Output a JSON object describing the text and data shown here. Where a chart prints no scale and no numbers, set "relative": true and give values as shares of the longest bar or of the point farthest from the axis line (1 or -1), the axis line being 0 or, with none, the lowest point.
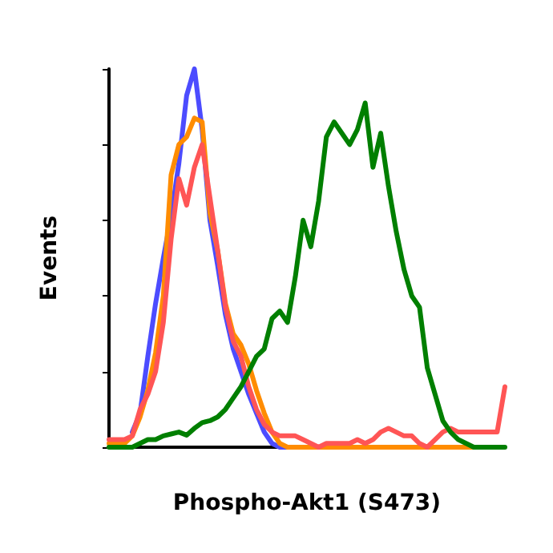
{
  "chart_data": {
    "type": "line",
    "xlabel": "Phospho-Akt1 (S473)",
    "ylabel": "Events",
    "relative": true,
    "grid": false,
    "line_style": "solid",
    "categories": [
      null,
      null,
      null,
      null,
      null,
      null,
      null,
      null,
      null,
      null,
      null,
      null,
      null,
      null,
      null,
      null,
      null,
      null,
      null,
      null,
      null,
      null,
      null,
      null,
      null,
      null,
      null,
      null,
      null,
      null,
      null,
      null,
      null,
      null,
      null,
      null,
      null,
      null,
      null,
      null,
      null,
      null,
      null,
      null,
      null,
      null,
      null,
      null,
      null,
      null,
      null,
      null
    ],
    "series": [
      {
        "color": "#4c4cff",
        "values": [
          null,
          null,
          null,
          0.04,
          0.09,
          0.24,
          0.38,
          0.5,
          0.61,
          0.75,
          0.93,
          1.0,
          0.84,
          0.6,
          0.48,
          0.35,
          0.26,
          0.2,
          0.14,
          0.09,
          0.04,
          0.01,
          0,
          0,
          null,
          null,
          null,
          null,
          null,
          null,
          null,
          null,
          null,
          null,
          null,
          null,
          null,
          null,
          null,
          null,
          null,
          null,
          null,
          null,
          null,
          null,
          null,
          null,
          null,
          null,
          null,
          null
        ]
      },
      {
        "color": "#ff8c00",
        "values": [
          0.01,
          0.01,
          0.01,
          0.03,
          0.08,
          0.15,
          0.25,
          0.4,
          0.72,
          0.8,
          0.82,
          0.87,
          0.86,
          0.62,
          0.52,
          0.38,
          0.3,
          0.27,
          0.22,
          0.15,
          0.09,
          0.04,
          0.01,
          0,
          0,
          0,
          0,
          0,
          0,
          0,
          0,
          0,
          0,
          0,
          0,
          0,
          0,
          0,
          0,
          0,
          0,
          0,
          0,
          0,
          0,
          0,
          0,
          0,
          0,
          null,
          null,
          null
        ]
      },
      {
        "color": "#ff5555",
        "values": [
          0.02,
          0.02,
          0.02,
          0.03,
          0.1,
          0.14,
          0.2,
          0.33,
          0.55,
          0.71,
          0.64,
          0.74,
          0.8,
          0.66,
          0.52,
          0.37,
          0.28,
          0.24,
          0.16,
          0.1,
          0.06,
          0.04,
          0.03,
          0.03,
          0.03,
          0.02,
          0.01,
          0,
          0.01,
          0.01,
          0.01,
          0.01,
          0.02,
          0.01,
          0.02,
          0.04,
          0.05,
          0.04,
          0.03,
          0.03,
          0.01,
          0,
          0.02,
          0.04,
          0.05,
          0.04,
          0.04,
          0.04,
          0.04,
          0.04,
          0.04,
          0.16
        ]
      },
      {
        "color": "#007f00",
        "values": [
          0,
          0,
          0,
          0,
          0.01,
          0.02,
          0.02,
          0.03,
          0.035,
          0.04,
          0.032,
          0.05,
          0.065,
          0.07,
          0.08,
          0.1,
          0.13,
          0.16,
          0.2,
          0.24,
          0.26,
          0.34,
          0.36,
          0.33,
          0.45,
          0.6,
          0.53,
          0.65,
          0.82,
          0.86,
          0.83,
          0.8,
          0.84,
          0.91,
          0.74,
          0.83,
          0.69,
          0.57,
          0.47,
          0.4,
          0.37,
          0.21,
          0.14,
          0.07,
          0.04,
          0.02,
          0.01,
          0,
          0,
          0,
          0,
          0
        ]
      }
    ]
  }
}
